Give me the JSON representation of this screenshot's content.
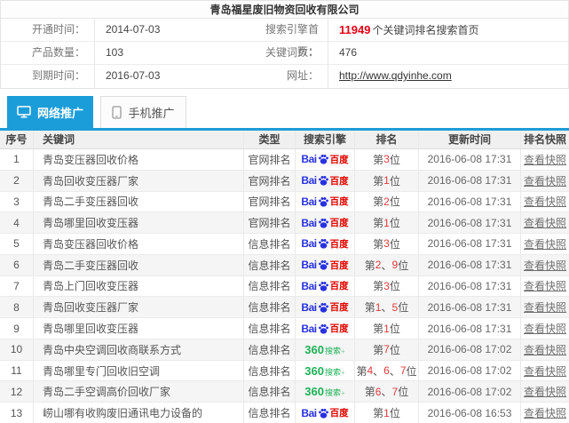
{
  "colors": {
    "accent": "#1b9dd9",
    "highlight_red": "#e60012",
    "rank_red": "#e03a3a",
    "baidu_blue": "#2932e1",
    "baidu_red": "#e10601",
    "green_360": "#1eb157"
  },
  "company": {
    "title": "青岛福星废旧物资回收有限公司"
  },
  "info": {
    "rows": [
      {
        "left": {
          "label": "开通时间：",
          "value": "2014-07-03"
        },
        "right": {
          "label": "搜索引擎首页：",
          "highlight": "11949",
          "value": "个关键词排名搜索首页"
        }
      },
      {
        "left": {
          "label": "产品数量：",
          "value": "103"
        },
        "right": {
          "label": "关键词数：",
          "value": "476"
        }
      },
      {
        "left": {
          "label": "到期时间：",
          "value": "2016-07-03"
        },
        "right": {
          "label": "网址：",
          "value": "http://www.qdyinhe.com"
        }
      }
    ]
  },
  "tabs": [
    {
      "label": "网络推广",
      "icon": "monitor-icon",
      "active": true
    },
    {
      "label": "手机推广",
      "icon": "phone-icon",
      "active": false
    }
  ],
  "table": {
    "headers": [
      "序号",
      "关键词",
      "类型",
      "搜索引擎",
      "排名",
      "更新时间",
      "排名快照"
    ],
    "rank_prefix": "第",
    "rank_suffix": "位",
    "rank_separator": "、",
    "snapshot_label": "查看快照",
    "engines": {
      "baidu": {
        "text_bai": "Bai",
        "text_du": "百度"
      },
      "g360": {
        "text_num": "360",
        "text_suffix": "搜索",
        "mark": "+"
      }
    },
    "rows": [
      {
        "no": "1",
        "keyword": "青岛变压器回收价格",
        "type": "官网排名",
        "engine": "baidu",
        "rank_numbers": [
          "3"
        ],
        "updated": "2016-06-08 17:31"
      },
      {
        "no": "2",
        "keyword": "青岛回收变压器厂家",
        "type": "官网排名",
        "engine": "baidu",
        "rank_numbers": [
          "1"
        ],
        "updated": "2016-06-08 17:31"
      },
      {
        "no": "3",
        "keyword": "青岛二手变压器回收",
        "type": "官网排名",
        "engine": "baidu",
        "rank_numbers": [
          "2"
        ],
        "updated": "2016-06-08 17:31"
      },
      {
        "no": "4",
        "keyword": "青岛哪里回收变压器",
        "type": "官网排名",
        "engine": "baidu",
        "rank_numbers": [
          "1"
        ],
        "updated": "2016-06-08 17:31"
      },
      {
        "no": "5",
        "keyword": "青岛变压器回收价格",
        "type": "信息排名",
        "engine": "baidu",
        "rank_numbers": [
          "3"
        ],
        "updated": "2016-06-08 17:31"
      },
      {
        "no": "6",
        "keyword": "青岛二手变压器回收",
        "type": "信息排名",
        "engine": "baidu",
        "rank_numbers": [
          "2",
          "9"
        ],
        "updated": "2016-06-08 17:31"
      },
      {
        "no": "7",
        "keyword": "青岛上门回收变压器",
        "type": "信息排名",
        "engine": "baidu",
        "rank_numbers": [
          "3"
        ],
        "updated": "2016-06-08 17:31"
      },
      {
        "no": "8",
        "keyword": "青岛回收变压器厂家",
        "type": "信息排名",
        "engine": "baidu",
        "rank_numbers": [
          "1",
          "5"
        ],
        "updated": "2016-06-08 17:31"
      },
      {
        "no": "9",
        "keyword": "青岛哪里回收变压器",
        "type": "信息排名",
        "engine": "baidu",
        "rank_numbers": [
          "1"
        ],
        "updated": "2016-06-08 17:31"
      },
      {
        "no": "10",
        "keyword": "青岛中央空调回收商联系方式",
        "type": "信息排名",
        "engine": "g360",
        "rank_numbers": [
          "7"
        ],
        "updated": "2016-06-08 17:02"
      },
      {
        "no": "11",
        "keyword": "青岛哪里专门回收旧空调",
        "type": "信息排名",
        "engine": "g360",
        "rank_numbers": [
          "4",
          "6",
          "7"
        ],
        "updated": "2016-06-08 17:02"
      },
      {
        "no": "12",
        "keyword": "青岛二手空调高价回收厂家",
        "type": "信息排名",
        "engine": "g360",
        "rank_numbers": [
          "6",
          "7"
        ],
        "updated": "2016-06-08 17:02"
      },
      {
        "no": "13",
        "keyword": "崂山哪有收购废旧通讯电力设备的",
        "type": "信息排名",
        "engine": "baidu",
        "rank_numbers": [
          "1"
        ],
        "updated": "2016-06-08 16:53"
      }
    ]
  }
}
